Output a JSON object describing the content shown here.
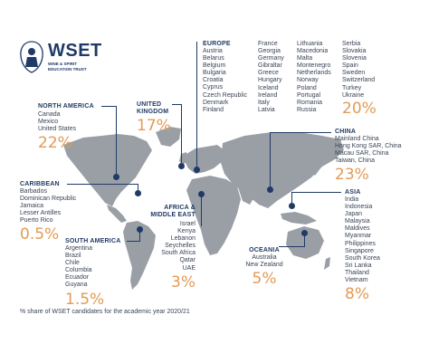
{
  "logo": {
    "wordmark": "WSET",
    "tagline": "WINE & SPIRIT EDUCATION TRUST"
  },
  "colors": {
    "navy": "#1f3a66",
    "orange": "#e39a55",
    "land": "#9a9fa6"
  },
  "regions": {
    "north_america": {
      "title": "NORTH AMERICA",
      "countries": [
        "Canada",
        "Mexico",
        "United States"
      ],
      "share": "22%"
    },
    "united_kingdom": {
      "title_line1": "UNITED",
      "title_line2": "KINGDOM",
      "share": "17%"
    },
    "europe": {
      "title": "EUROPE",
      "col1": [
        "Austria",
        "Belarus",
        "Belgium",
        "Bulgaria",
        "Croatia",
        "Cyprus",
        "Czech Republic",
        "Denmark",
        "Finland"
      ],
      "col2": [
        "France",
        "Georgia",
        "Germany",
        "Gibraltar",
        "Greece",
        "Hungary",
        "Iceland",
        "Ireland",
        "Italy",
        "Latvia"
      ],
      "col3": [
        "Lithuania",
        "Macedonia",
        "Malta",
        "Montenegro",
        "Netherlands",
        "Norway",
        "Poland",
        "Portugal",
        "Romania",
        "Russia"
      ],
      "col4": [
        "Serbia",
        "Slovakia",
        "Slovenia",
        "Spain",
        "Sweden",
        "Switzerland",
        "Turkey",
        "Ukraine"
      ],
      "share": "20%"
    },
    "china": {
      "title": "CHINA",
      "countries": [
        "Mainland China",
        "Hong Kong SAR, China",
        "Macau SAR, China",
        "Taiwan, China"
      ],
      "share": "23%"
    },
    "caribbean": {
      "title": "CARIBBEAN",
      "countries": [
        "Barbados",
        "Dominican Republic",
        "Jamaica",
        "Lesser Antilles",
        "Puerto Rico"
      ],
      "share": "0.5%"
    },
    "south_america": {
      "title": "SOUTH AMERICA",
      "countries": [
        "Argentina",
        "Brazil",
        "Chile",
        "Columbia",
        "Ecuador",
        "Guyana"
      ],
      "share": "1.5%"
    },
    "africa_middle_east": {
      "title_line1": "AFRICA &",
      "title_line2": "MIDDLE EAST",
      "countries": [
        "Israel",
        "Kenya",
        "Lebanon",
        "Seychelles",
        "South Africa",
        "Qatar",
        "UAE"
      ],
      "share": "3%"
    },
    "oceania": {
      "title": "OCEANIA",
      "countries": [
        "Australia",
        "New Zealand"
      ],
      "share": "5%"
    },
    "asia": {
      "title": "ASIA",
      "countries": [
        "India",
        "Indonesia",
        "Japan",
        "Malaysia",
        "Maldives",
        "Myanmar",
        "Philippines",
        "Singapore",
        "South Korea",
        "Sri Lanka",
        "Thailand",
        "Vietnam"
      ],
      "share": "8%"
    }
  },
  "footer": "% share of WSET candidates for the academic year 2020/21"
}
